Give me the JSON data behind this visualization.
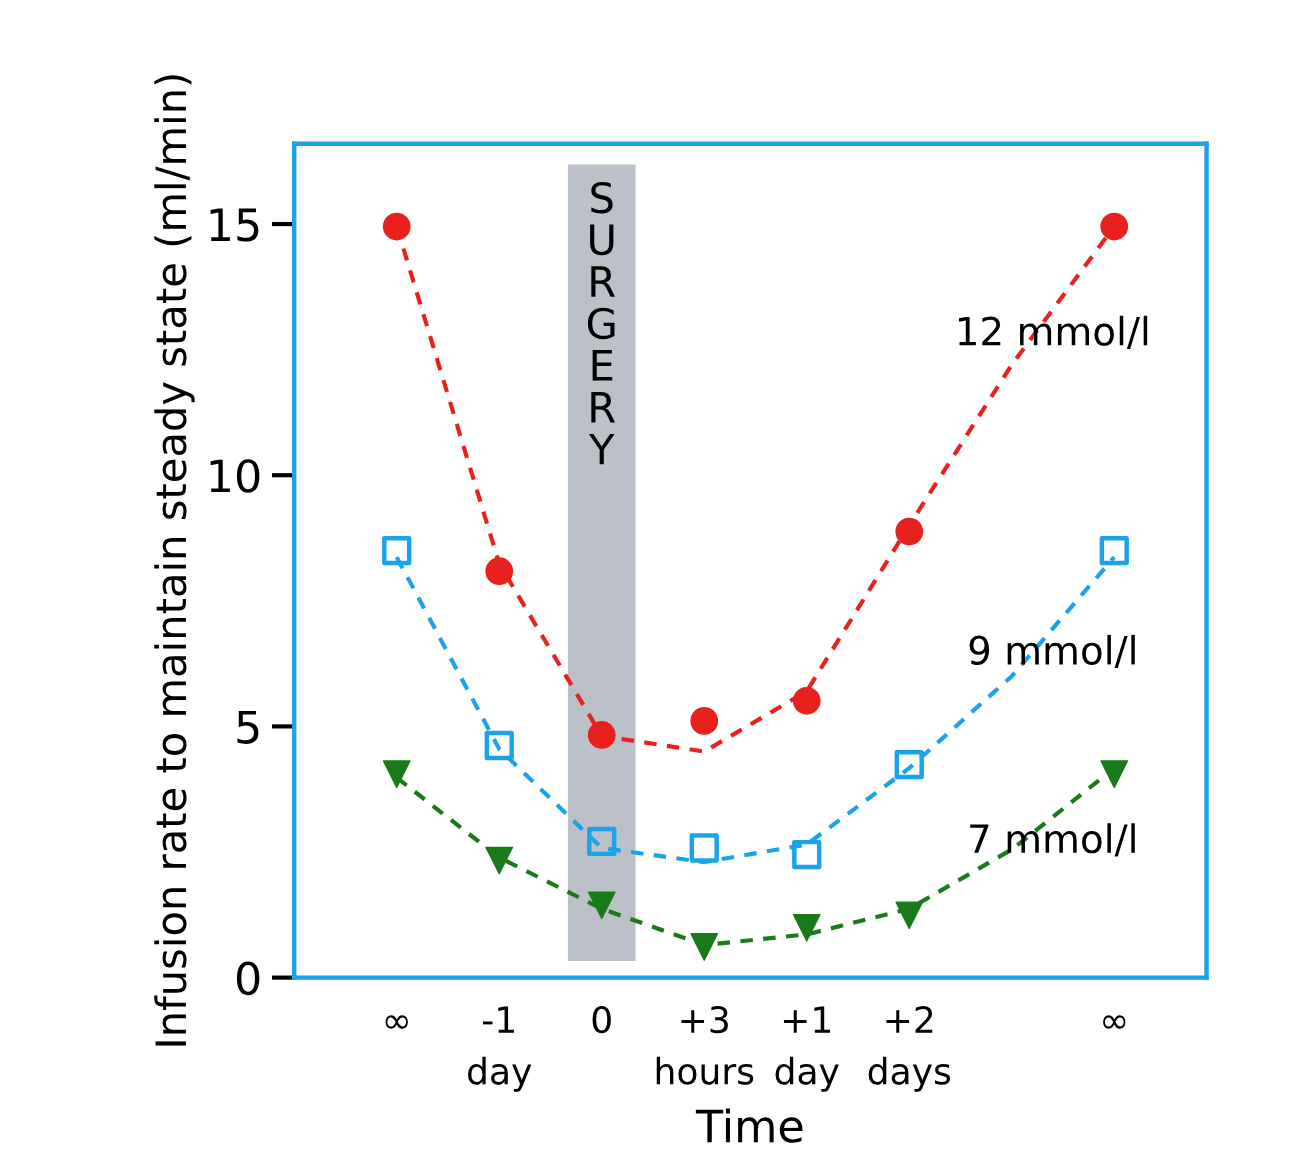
{
  "chart_data": {
    "type": "scatter",
    "xlabel": "Time",
    "ylabel": "Infusion rate to maintain steady state (ml/min)",
    "categories": [
      "∞",
      "-1\nday",
      "0",
      "+3\nhours",
      "+1\nday",
      "+2\ndays",
      null,
      "∞"
    ],
    "ylim": [
      0,
      16.6
    ],
    "yticks": [
      0,
      5,
      10,
      15
    ],
    "grid": false,
    "legend": false,
    "bands": [
      {
        "axis": "x",
        "from": "0",
        "to": "0",
        "label": "SURGERY",
        "color": "#bcc0c8"
      }
    ],
    "series": [
      {
        "type": "line",
        "color": "#e8201e",
        "line_style": "dashed",
        "values": [
          14.95,
          8.24,
          4.81,
          4.5,
          5.7,
          9.0,
          12.2,
          14.95
        ]
      },
      {
        "type": "line",
        "color": "#1aa3e8",
        "line_style": "dashed",
        "values": [
          8.37,
          4.55,
          2.58,
          2.3,
          2.65,
          4.17,
          6.0,
          8.37
        ]
      },
      {
        "type": "line",
        "color": "#1a7a1a",
        "line_style": "dashed",
        "values": [
          3.98,
          2.39,
          1.37,
          0.65,
          0.86,
          1.37,
          2.55,
          4.17
        ]
      },
      {
        "name": "12 mmol/l",
        "color": "#e8201e",
        "marker": "circle",
        "values": [
          14.95,
          8.09,
          4.83,
          5.11,
          5.51,
          8.88,
          null,
          14.95
        ]
      },
      {
        "name": "9 mmol/l",
        "color": "#1aa3e8",
        "marker": "square",
        "values": [
          8.5,
          4.62,
          2.71,
          2.58,
          2.45,
          4.24,
          null,
          8.5
        ]
      },
      {
        "name": "7 mmol/l",
        "color": "#1a7a1a",
        "marker": "triangle",
        "values": [
          4.05,
          2.33,
          1.44,
          0.61,
          0.99,
          1.24,
          null,
          4.05
        ]
      }
    ]
  }
}
